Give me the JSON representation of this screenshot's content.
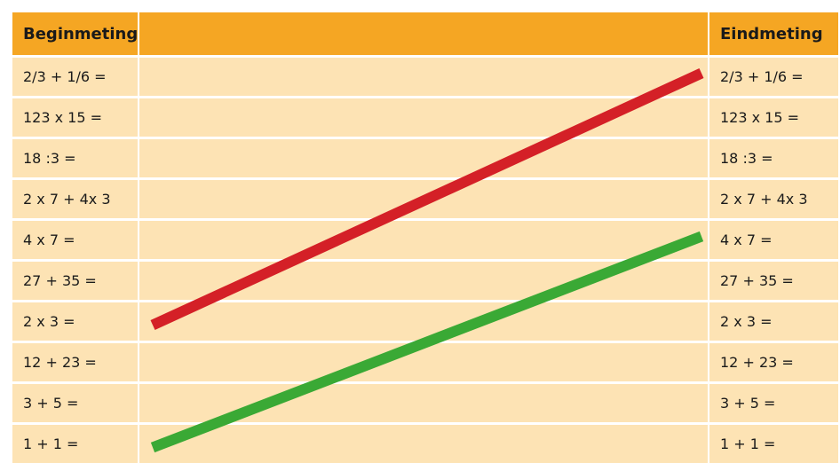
{
  "header": {
    "left": "Beginmeting",
    "middle": "",
    "right": "Eindmeting"
  },
  "rows": [
    {
      "left": "2/3 + 1/6 =",
      "right": "2/3 + 1/6 ="
    },
    {
      "left": "123 x 15 =",
      "right": "123 x 15 ="
    },
    {
      "left": "18 :3 =",
      "right": "18 :3 ="
    },
    {
      "left": "2 x 7 + 4x 3",
      "right": "2 x 7 + 4x 3"
    },
    {
      "left": "4 x 7 =",
      "right": "4 x 7 ="
    },
    {
      "left": "27 + 35 =",
      "right": "27 + 35 ="
    },
    {
      "left": "2 x 3 =",
      "right": "2 x 3 ="
    },
    {
      "left": "12 + 23 =",
      "right": "12 + 23 ="
    },
    {
      "left": "3 + 5 =",
      "right": "3 + 5 ="
    },
    {
      "left": "1 + 1 =",
      "right": "1 + 1 ="
    }
  ],
  "lines": [
    {
      "name": "red-line",
      "color": "#d42027",
      "from_row": 6,
      "to_row": 0
    },
    {
      "name": "green-line",
      "color": "#3aa935",
      "from_row": 9,
      "to_row": 4
    }
  ],
  "colors": {
    "header": "#f5a623",
    "cell": "#fde3b4"
  }
}
